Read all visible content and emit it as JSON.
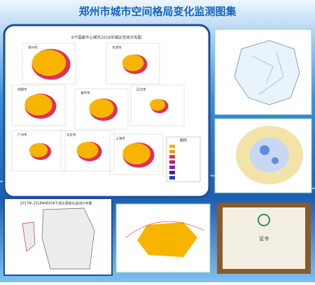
{
  "header": {
    "title": "郑州市城市空间格局变化监测图集"
  },
  "main_map": {
    "title": "8个国家中心城市2018年城区空间分布图",
    "cities": [
      "郑州市",
      "天津市",
      "成都市",
      "重庆市",
      "武汉市",
      "广州市",
      "北京市",
      "上海市"
    ],
    "legend": {
      "title": "图例"
    }
  },
  "bottom_left": {
    "title": "2017年-2018年郑州市不透水面变化监测分布图"
  },
  "certificate": {
    "label": "证书"
  }
}
